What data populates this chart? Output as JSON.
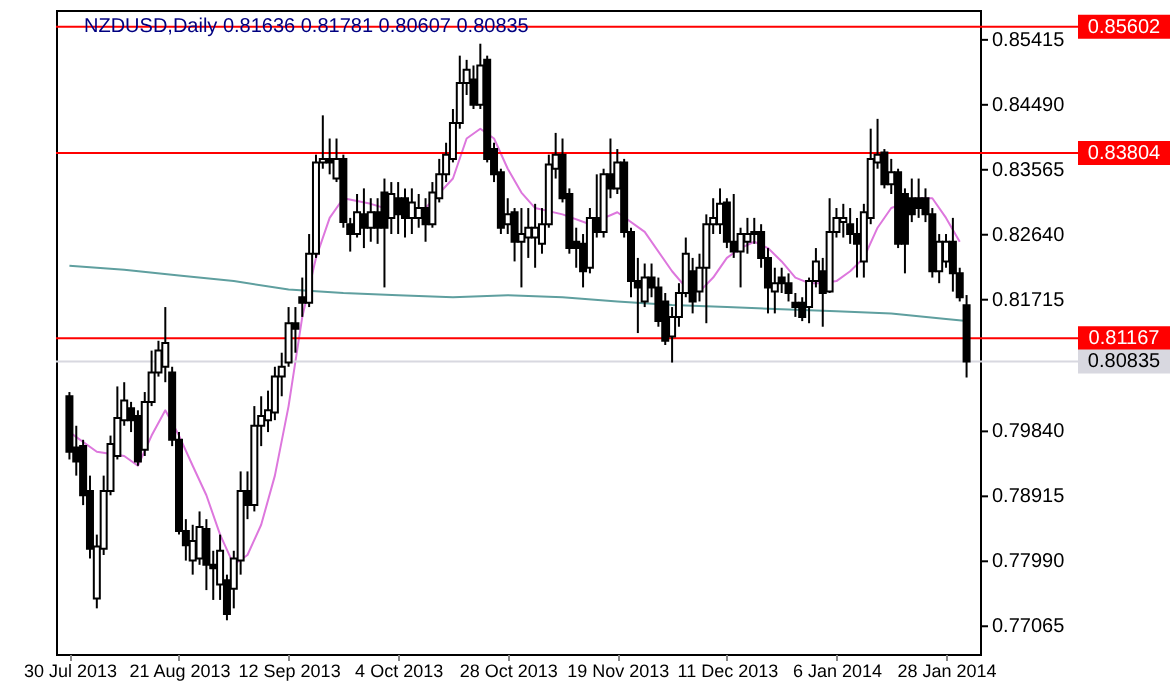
{
  "chart_data": {
    "type": "candlestick",
    "title": "NZDUSD,Daily  0.81636 0.81781 0.80607 0.80835",
    "categories": [
      "30 Jul 2013",
      null,
      null,
      null,
      null,
      null,
      null,
      null,
      null,
      null,
      null,
      null,
      null,
      null,
      null,
      null,
      "21 Aug 2013",
      null,
      null,
      null,
      null,
      null,
      null,
      null,
      null,
      null,
      null,
      null,
      null,
      null,
      null,
      null,
      "12 Sep 2013",
      null,
      null,
      null,
      null,
      null,
      null,
      null,
      null,
      null,
      null,
      null,
      null,
      null,
      null,
      null,
      "4 Oct 2013",
      null,
      null,
      null,
      null,
      null,
      null,
      null,
      null,
      null,
      null,
      null,
      null,
      null,
      null,
      null,
      "28 Oct 2013",
      null,
      null,
      null,
      null,
      null,
      null,
      null,
      null,
      null,
      null,
      null,
      null,
      null,
      null,
      null,
      "19 Nov 2013",
      null,
      null,
      null,
      null,
      null,
      null,
      null,
      null,
      null,
      null,
      null,
      null,
      null,
      null,
      null,
      "11 Dec 2013",
      null,
      null,
      null,
      null,
      null,
      null,
      null,
      null,
      null,
      null,
      null,
      null,
      null,
      null,
      null,
      "6 Jan 2014",
      null,
      null,
      null,
      null,
      null,
      null,
      null,
      null,
      null,
      null,
      null,
      null,
      null,
      null,
      null,
      "28 Jan 2014",
      null,
      null,
      null
    ],
    "ohlc": [
      [
        0.8034,
        0.804,
        0.7944,
        0.7955
      ],
      [
        0.7961,
        0.7992,
        0.7921,
        0.7941
      ],
      [
        0.7963,
        0.7972,
        0.7879,
        0.7893
      ],
      [
        0.7899,
        0.7921,
        0.7803,
        0.7817
      ],
      [
        0.7746,
        0.7837,
        0.7732,
        0.782
      ],
      [
        0.7817,
        0.7921,
        0.7808,
        0.7899
      ],
      [
        0.7899,
        0.7978,
        0.7893,
        0.7966
      ],
      [
        0.7949,
        0.8048,
        0.7944,
        0.8003
      ],
      [
        0.8,
        0.8054,
        0.7992,
        0.8028
      ],
      [
        0.8017,
        0.8026,
        0.7983,
        0.8
      ],
      [
        0.8006,
        0.8014,
        0.7935,
        0.7941
      ],
      [
        0.7958,
        0.804,
        0.7949,
        0.8026
      ],
      [
        0.8026,
        0.8099,
        0.802,
        0.8068
      ],
      [
        0.8068,
        0.8113,
        0.8062,
        0.8099
      ],
      [
        0.8076,
        0.8161,
        0.8054,
        0.811
      ],
      [
        0.8068,
        0.8076,
        0.7963,
        0.7972
      ],
      [
        0.7972,
        0.7983,
        0.7837,
        0.7842
      ],
      [
        0.7842,
        0.7859,
        0.78,
        0.7822
      ],
      [
        0.78,
        0.7851,
        0.778,
        0.7828
      ],
      [
        0.7803,
        0.787,
        0.7794,
        0.7848
      ],
      [
        0.7845,
        0.7859,
        0.7758,
        0.7794
      ],
      [
        0.7794,
        0.7814,
        0.7744,
        0.7789
      ],
      [
        0.7766,
        0.7837,
        0.7744,
        0.7814
      ],
      [
        0.7772,
        0.778,
        0.7715,
        0.7724
      ],
      [
        0.776,
        0.7814,
        0.7732,
        0.7803
      ],
      [
        0.78,
        0.7927,
        0.778,
        0.7899
      ],
      [
        0.7899,
        0.7927,
        0.7859,
        0.7879
      ],
      [
        0.7879,
        0.802,
        0.787,
        0.7992
      ],
      [
        0.7992,
        0.8034,
        0.7963,
        0.8006
      ],
      [
        0.8,
        0.8042,
        0.7983,
        0.8014
      ],
      [
        0.8011,
        0.8076,
        0.8,
        0.8062
      ],
      [
        0.8062,
        0.8096,
        0.8034,
        0.8076
      ],
      [
        0.8082,
        0.8161,
        0.8076,
        0.8138
      ],
      [
        0.8138,
        0.8161,
        0.8096,
        0.813
      ],
      [
        0.8175,
        0.8203,
        0.8147,
        0.8167
      ],
      [
        0.8167,
        0.8265,
        0.8161,
        0.8237
      ],
      [
        0.8237,
        0.8378,
        0.8231,
        0.8367
      ],
      [
        0.8367,
        0.8434,
        0.8358,
        0.8372
      ],
      [
        0.8372,
        0.8401,
        0.835,
        0.8367
      ],
      [
        0.8344,
        0.8401,
        0.8339,
        0.8372
      ],
      [
        0.8372,
        0.8378,
        0.8274,
        0.8282
      ],
      [
        0.8279,
        0.8288,
        0.824,
        0.8265
      ],
      [
        0.8265,
        0.8322,
        0.826,
        0.8296
      ],
      [
        0.8293,
        0.833,
        0.8245,
        0.8274
      ],
      [
        0.8274,
        0.8316,
        0.8254,
        0.8296
      ],
      [
        0.8296,
        0.8316,
        0.8251,
        0.8274
      ],
      [
        0.8324,
        0.8344,
        0.8189,
        0.8274
      ],
      [
        0.8288,
        0.8339,
        0.8265,
        0.8322
      ],
      [
        0.8316,
        0.8339,
        0.8265,
        0.8293
      ],
      [
        0.8316,
        0.833,
        0.826,
        0.8288
      ],
      [
        0.8288,
        0.833,
        0.8265,
        0.831
      ],
      [
        0.8288,
        0.8322,
        0.8274,
        0.8302
      ],
      [
        0.8302,
        0.8316,
        0.8254,
        0.8279
      ],
      [
        0.8279,
        0.8339,
        0.8274,
        0.8324
      ],
      [
        0.8316,
        0.8372,
        0.831,
        0.835
      ],
      [
        0.835,
        0.8395,
        0.8339,
        0.8378
      ],
      [
        0.8372,
        0.8443,
        0.8367,
        0.8423
      ],
      [
        0.8423,
        0.8519,
        0.8415,
        0.848
      ],
      [
        0.848,
        0.8513,
        0.8463,
        0.8499
      ],
      [
        0.8485,
        0.8505,
        0.8443,
        0.8449
      ],
      [
        0.8449,
        0.8536,
        0.8443,
        0.8505
      ],
      [
        0.8513,
        0.8519,
        0.8367,
        0.8372
      ],
      [
        0.8386,
        0.8395,
        0.8339,
        0.835
      ],
      [
        0.8353,
        0.8358,
        0.8265,
        0.8274
      ],
      [
        0.8279,
        0.8316,
        0.8265,
        0.8293
      ],
      [
        0.8296,
        0.8302,
        0.8226,
        0.8254
      ],
      [
        0.8254,
        0.8302,
        0.8189,
        0.8265
      ],
      [
        0.826,
        0.8302,
        0.8231,
        0.8274
      ],
      [
        0.826,
        0.8308,
        0.8217,
        0.8274
      ],
      [
        0.8251,
        0.8302,
        0.8237,
        0.8279
      ],
      [
        0.8279,
        0.8378,
        0.8274,
        0.8364
      ],
      [
        0.8358,
        0.8409,
        0.8344,
        0.8378
      ],
      [
        0.8378,
        0.8401,
        0.831,
        0.8316
      ],
      [
        0.8322,
        0.833,
        0.8237,
        0.8245
      ],
      [
        0.8254,
        0.8274,
        0.8217,
        0.8245
      ],
      [
        0.8251,
        0.8265,
        0.8189,
        0.8212
      ],
      [
        0.8217,
        0.8302,
        0.8209,
        0.8288
      ],
      [
        0.8288,
        0.835,
        0.826,
        0.8268
      ],
      [
        0.8268,
        0.8358,
        0.826,
        0.835
      ],
      [
        0.835,
        0.8401,
        0.8316,
        0.833
      ],
      [
        0.833,
        0.8386,
        0.8322,
        0.8367
      ],
      [
        0.8367,
        0.8372,
        0.826,
        0.8268
      ],
      [
        0.8268,
        0.8274,
        0.8175,
        0.8198
      ],
      [
        0.8198,
        0.8231,
        0.8124,
        0.8189
      ],
      [
        0.8169,
        0.8223,
        0.8161,
        0.8203
      ],
      [
        0.8203,
        0.8223,
        0.8175,
        0.8189
      ],
      [
        0.8189,
        0.8203,
        0.8133,
        0.8141
      ],
      [
        0.8169,
        0.8181,
        0.8107,
        0.8113
      ],
      [
        0.8119,
        0.8161,
        0.8082,
        0.8147
      ],
      [
        0.8147,
        0.8195,
        0.8133,
        0.8181
      ],
      [
        0.8181,
        0.826,
        0.8175,
        0.8237
      ],
      [
        0.8212,
        0.8231,
        0.8152,
        0.8169
      ],
      [
        0.8183,
        0.8237,
        0.8169,
        0.8217
      ],
      [
        0.8217,
        0.8293,
        0.8138,
        0.8279
      ],
      [
        0.8279,
        0.8316,
        0.8265,
        0.8288
      ],
      [
        0.8279,
        0.833,
        0.8265,
        0.8308
      ],
      [
        0.831,
        0.8316,
        0.8245,
        0.8254
      ],
      [
        0.8254,
        0.8322,
        0.8231,
        0.824
      ],
      [
        0.824,
        0.8274,
        0.8189,
        0.8265
      ],
      [
        0.8254,
        0.8288,
        0.8237,
        0.8265
      ],
      [
        0.8265,
        0.8288,
        0.8251,
        0.8268
      ],
      [
        0.8268,
        0.8279,
        0.8217,
        0.8231
      ],
      [
        0.8231,
        0.8245,
        0.8152,
        0.8189
      ],
      [
        0.8183,
        0.8217,
        0.8152,
        0.8195
      ],
      [
        0.8203,
        0.8217,
        0.8181,
        0.8195
      ],
      [
        0.8195,
        0.8209,
        0.8169,
        0.8181
      ],
      [
        0.8167,
        0.8181,
        0.8147,
        0.8161
      ],
      [
        0.8167,
        0.8175,
        0.8141,
        0.8147
      ],
      [
        0.8161,
        0.8203,
        0.8138,
        0.8198
      ],
      [
        0.8198,
        0.8245,
        0.8189,
        0.8226
      ],
      [
        0.8212,
        0.8231,
        0.8133,
        0.8181
      ],
      [
        0.8183,
        0.8316,
        0.8181,
        0.8268
      ],
      [
        0.8268,
        0.8302,
        0.826,
        0.8288
      ],
      [
        0.8282,
        0.8308,
        0.826,
        0.8288
      ],
      [
        0.8279,
        0.8302,
        0.8251,
        0.8265
      ],
      [
        0.8265,
        0.8288,
        0.8203,
        0.8251
      ],
      [
        0.8226,
        0.8308,
        0.8203,
        0.8296
      ],
      [
        0.8288,
        0.8415,
        0.8279,
        0.8372
      ],
      [
        0.8367,
        0.8429,
        0.8358,
        0.8378
      ],
      [
        0.8381,
        0.8386,
        0.833,
        0.8336
      ],
      [
        0.8336,
        0.8372,
        0.8322,
        0.8353
      ],
      [
        0.8353,
        0.8358,
        0.8245,
        0.8251
      ],
      [
        0.8322,
        0.833,
        0.8209,
        0.8251
      ],
      [
        0.8316,
        0.8344,
        0.8282,
        0.8293
      ],
      [
        0.8316,
        0.8344,
        0.8288,
        0.8302
      ],
      [
        0.8316,
        0.833,
        0.8282,
        0.8293
      ],
      [
        0.8293,
        0.8302,
        0.8203,
        0.8212
      ],
      [
        0.8212,
        0.8265,
        0.8195,
        0.8254
      ],
      [
        0.8226,
        0.8265,
        0.8217,
        0.8254
      ],
      [
        0.8254,
        0.8288,
        0.8183,
        0.8209
      ],
      [
        0.8209,
        0.8217,
        0.8169,
        0.8175
      ],
      [
        0.81636,
        0.81781,
        0.80607,
        0.80835
      ]
    ],
    "series": [
      {
        "type": "line",
        "color": "#dd77dd",
        "values": [
          0.7983,
          null,
          null,
          null,
          0.7955,
          null,
          null,
          null,
          0.7949,
          null,
          0.7935,
          null,
          0.7978,
          null,
          0.8014,
          null,
          0.7978,
          null,
          0.7935,
          null,
          0.7893,
          null,
          0.7837,
          null,
          0.7794,
          null,
          0.7808,
          null,
          0.7851,
          null,
          0.7921,
          null,
          0.802,
          null,
          0.8147,
          null,
          0.8231,
          null,
          0.8288,
          null,
          0.8316,
          null,
          null,
          null,
          0.8308,
          null,
          null,
          null,
          0.8296,
          null,
          null,
          null,
          0.8302,
          null,
          null,
          null,
          0.8344,
          null,
          0.8401,
          null,
          0.8415,
          null,
          0.8401,
          null,
          0.8358,
          null,
          0.8324,
          null,
          0.8302,
          null,
          null,
          null,
          0.8293,
          null,
          null,
          null,
          0.8279,
          null,
          null,
          null,
          0.8296,
          null,
          null,
          null,
          0.8268,
          null,
          null,
          null,
          0.8212,
          null,
          0.8189,
          null,
          0.8183,
          null,
          0.8203,
          null,
          0.8231,
          null,
          0.8245,
          null,
          0.8254,
          null,
          0.8245,
          null,
          0.8226,
          null,
          0.8203,
          null,
          0.8195,
          null,
          0.8195,
          null,
          0.8198,
          null,
          0.8212,
          null,
          0.8231,
          null,
          0.8274,
          null,
          0.8302,
          null,
          null,
          null,
          0.8316,
          null,
          0.8316,
          null,
          0.8288,
          null,
          0.8254,
          null
        ]
      },
      {
        "type": "line",
        "color": "#5f9f9f",
        "values": [
          0.822,
          null,
          null,
          null,
          null,
          null,
          null,
          null,
          0.8214,
          null,
          null,
          null,
          null,
          null,
          null,
          null,
          0.8206,
          null,
          null,
          null,
          null,
          null,
          null,
          null,
          0.8198,
          null,
          null,
          null,
          null,
          null,
          null,
          null,
          0.8186,
          null,
          null,
          null,
          null,
          null,
          null,
          null,
          0.8181,
          null,
          null,
          null,
          null,
          null,
          null,
          null,
          0.8178,
          null,
          null,
          null,
          null,
          null,
          null,
          null,
          0.8175,
          null,
          null,
          null,
          null,
          null,
          null,
          null,
          0.8178,
          null,
          null,
          null,
          null,
          null,
          null,
          null,
          0.8175,
          null,
          null,
          null,
          null,
          null,
          null,
          null,
          0.8169,
          null,
          null,
          null,
          null,
          null,
          null,
          null,
          0.8164,
          null,
          null,
          null,
          null,
          null,
          null,
          null,
          0.8161,
          null,
          null,
          null,
          null,
          null,
          null,
          null,
          0.8158,
          null,
          null,
          null,
          null,
          null,
          null,
          null,
          0.8155,
          null,
          null,
          null,
          null,
          null,
          null,
          null,
          0.8152,
          null,
          null,
          null,
          null,
          null,
          null,
          null,
          0.8144,
          null,
          null,
          0.8141
        ]
      }
    ],
    "ylim": [
      0.7667,
      0.8584
    ],
    "yticks": [
      0.85415,
      {
        "value": 0.8449,
        "label": "0.84490"
      },
      0.83565,
      {
        "value": 0.8264,
        "label": "0.82640"
      },
      0.81715,
      {
        "value": 0.7984,
        "label": "0.79840"
      },
      0.78915,
      {
        "value": 0.7799,
        "label": "0.77990"
      },
      0.77065
    ],
    "ref_lines": [
      {
        "axis": "y",
        "value": 0.85602,
        "label": "0.85602",
        "color": "#ff0000"
      },
      {
        "axis": "y",
        "value": 0.83804,
        "label": "0.83804",
        "color": "#ff0000"
      },
      {
        "axis": "y",
        "value": 0.81167,
        "label": "0.81167",
        "color": "#ff0000"
      },
      {
        "axis": "y",
        "value": 0.80835,
        "label": "0.80835",
        "color": "#d8d8e0"
      }
    ],
    "grid": false
  }
}
